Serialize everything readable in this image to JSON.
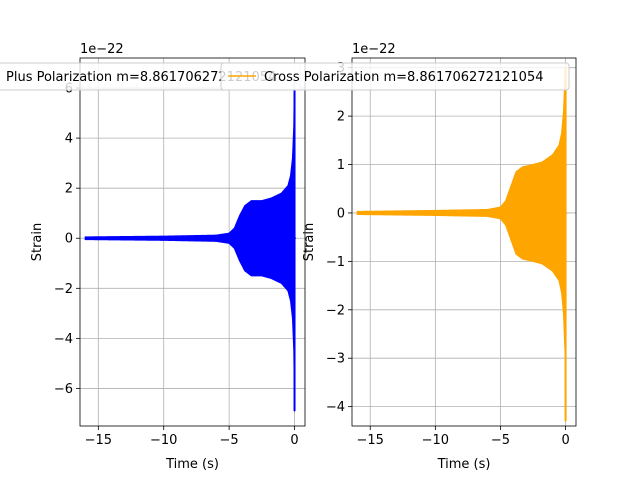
{
  "chart_data": [
    {
      "type": "line",
      "xlabel": "Time (s)",
      "ylabel": "Strain",
      "offset_text": "1e−22",
      "scale": 1e-22,
      "xlim": [
        -16.4,
        0.8
      ],
      "ylim": [
        -7.5,
        7.2
      ],
      "xticks": [
        -15,
        -10,
        -5,
        0
      ],
      "xtick_labels": [
        "−15",
        "−10",
        "−5",
        "0"
      ],
      "yticks": [
        -6,
        -4,
        -2,
        0,
        2,
        4,
        6
      ],
      "ytick_labels": [
        "−6",
        "−4",
        "−2",
        "0",
        "2",
        "4",
        "6"
      ],
      "grid": true,
      "legend_position": "upper-left",
      "series": [
        {
          "name": "Plus Polarization m=8.861706272121054",
          "color": "#0000ff",
          "x_range": [
            -16.0,
            0.1
          ],
          "envelope": [
            [
              -16.0,
              0.05
            ],
            [
              -10.0,
              0.08
            ],
            [
              -6.0,
              0.12
            ],
            [
              -5.0,
              0.2
            ],
            [
              -4.6,
              0.4
            ],
            [
              -4.2,
              0.9
            ],
            [
              -3.8,
              1.3
            ],
            [
              -3.3,
              1.5
            ],
            [
              -2.5,
              1.5
            ],
            [
              -1.8,
              1.6
            ],
            [
              -1.0,
              1.8
            ],
            [
              -0.5,
              2.1
            ],
            [
              -0.3,
              2.5
            ],
            [
              -0.15,
              3.2
            ],
            [
              -0.05,
              4.5
            ],
            [
              0.0,
              6.6
            ]
          ],
          "negative_peak": -6.9
        }
      ]
    },
    {
      "type": "line",
      "xlabel": "Time (s)",
      "ylabel": "Strain",
      "offset_text": "1e−22",
      "scale": 1e-22,
      "xlim": [
        -16.4,
        0.8
      ],
      "ylim": [
        -4.4,
        3.2
      ],
      "xticks": [
        -15,
        -10,
        -5,
        0
      ],
      "xtick_labels": [
        "−15",
        "−10",
        "−5",
        "0"
      ],
      "yticks": [
        -4,
        -3,
        -2,
        -1,
        0,
        1,
        2,
        3
      ],
      "ytick_labels": [
        "−4",
        "−3",
        "−2",
        "−1",
        "0",
        "1",
        "2",
        "3"
      ],
      "grid": true,
      "legend_position": "upper-left",
      "series": [
        {
          "name": "Cross Polarization m=8.861706272121054",
          "color": "#ffa500",
          "x_range": [
            -16.0,
            0.1
          ],
          "envelope": [
            [
              -16.0,
              0.03
            ],
            [
              -10.0,
              0.05
            ],
            [
              -6.0,
              0.07
            ],
            [
              -5.0,
              0.12
            ],
            [
              -4.6,
              0.25
            ],
            [
              -4.2,
              0.55
            ],
            [
              -3.8,
              0.85
            ],
            [
              -3.3,
              0.95
            ],
            [
              -2.5,
              1.0
            ],
            [
              -1.8,
              1.05
            ],
            [
              -1.0,
              1.2
            ],
            [
              -0.5,
              1.4
            ],
            [
              -0.3,
              1.65
            ],
            [
              -0.15,
              2.1
            ],
            [
              -0.05,
              2.8
            ],
            [
              0.0,
              3.0
            ]
          ],
          "negative_peak": -4.3
        }
      ]
    }
  ]
}
